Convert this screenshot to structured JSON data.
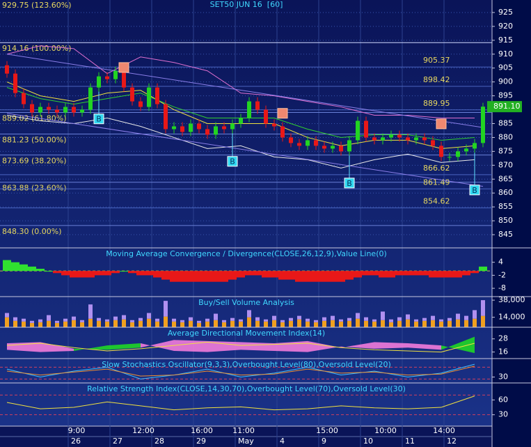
{
  "chart_data": {
    "type": "candlestick",
    "title": "SET50 JUN 16  [60]",
    "time_labels": [
      null,
      null,
      null,
      null,
      null,
      null,
      null,
      null,
      "9:00",
      null,
      null,
      null,
      null,
      null,
      null,
      null,
      "12:00",
      null,
      null,
      null,
      null,
      null,
      null,
      "16:00",
      null,
      null,
      null,
      null,
      "11:00",
      null,
      null,
      null,
      null,
      null,
      null,
      null,
      null,
      null,
      "15:00",
      null,
      null,
      null,
      null,
      null,
      null,
      "10:00",
      null,
      null,
      null,
      null,
      null,
      null,
      "14:00",
      null,
      null,
      null,
      null,
      null
    ],
    "date_labels": [
      null,
      null,
      null,
      null,
      null,
      null,
      null,
      null,
      "26",
      null,
      null,
      null,
      null,
      "27",
      null,
      null,
      null,
      null,
      "28",
      null,
      null,
      null,
      null,
      "29",
      null,
      null,
      null,
      null,
      "May",
      null,
      null,
      null,
      null,
      "4",
      null,
      null,
      null,
      null,
      "9",
      null,
      null,
      null,
      null,
      "10",
      null,
      null,
      null,
      null,
      "11",
      null,
      null,
      null,
      null,
      "12",
      null,
      null,
      null,
      null
    ],
    "open": [
      906,
      903,
      896,
      892,
      889,
      891,
      890,
      889,
      891,
      889,
      890,
      898,
      902,
      901,
      904,
      898,
      893,
      891,
      898,
      892,
      883,
      884,
      882,
      885,
      883,
      881,
      884,
      883,
      885,
      887,
      893,
      890,
      885,
      884,
      880,
      878,
      877,
      879,
      877,
      876,
      877,
      875,
      879,
      886,
      880,
      879,
      880,
      881,
      880,
      879,
      880,
      879,
      877,
      873,
      873,
      875,
      876,
      878
    ],
    "high": [
      907.5,
      904.5,
      897.5,
      893.5,
      892.5,
      892.5,
      891.5,
      892.5,
      892.5,
      891.5,
      899.5,
      903.5,
      903.5,
      905.5,
      905.5,
      899.5,
      894.5,
      899.5,
      899.5,
      893.5,
      885.5,
      885.5,
      886.5,
      886.5,
      884.5,
      885.5,
      885.5,
      886.5,
      888.5,
      894.5,
      894.5,
      891.5,
      886.5,
      885.5,
      881.5,
      879.5,
      880.5,
      880.5,
      878.5,
      878.5,
      878.5,
      880.5,
      887.5,
      887.5,
      881.5,
      881.5,
      882.5,
      882.5,
      881.5,
      881.5,
      881.5,
      880.5,
      878.5,
      874.5,
      876.5,
      877.5,
      879.5,
      892.5
    ],
    "low": [
      901.5,
      894.5,
      890.5,
      887.5,
      887.5,
      888.5,
      887.5,
      887.5,
      887.5,
      887.5,
      888.5,
      896.5,
      899.5,
      899.5,
      896.5,
      891.5,
      889.5,
      889.5,
      890.5,
      881.5,
      881.5,
      880.5,
      880.5,
      881.5,
      879.5,
      879.5,
      881.5,
      881.5,
      883.5,
      885.5,
      888.5,
      883.5,
      882.5,
      878.5,
      876.5,
      875.5,
      875.5,
      875.5,
      874.5,
      874.5,
      873.5,
      873.5,
      877.5,
      878.5,
      877.5,
      877.5,
      878.5,
      878.5,
      877.5,
      877.5,
      877.5,
      875.5,
      871.5,
      871.5,
      871.5,
      873.5,
      874.5,
      876.5
    ],
    "close": [
      903,
      896,
      892,
      889,
      891,
      890,
      889,
      891,
      889,
      890,
      898,
      902,
      901,
      904,
      898,
      893,
      891,
      898,
      892,
      883,
      884,
      882,
      885,
      883,
      881,
      884,
      883,
      885,
      887,
      893,
      890,
      885,
      884,
      880,
      878,
      877,
      879,
      877,
      876,
      877,
      875,
      879,
      886,
      880,
      879,
      880,
      881,
      880,
      879,
      880,
      879,
      877,
      873,
      873,
      875,
      876,
      878,
      891.1
    ],
    "up_color": "#22d422",
    "down_color": "#e81818",
    "ylim": [
      840.5,
      929.5
    ],
    "yticks": [
      845,
      850,
      855,
      860,
      865,
      870,
      875,
      880,
      885,
      890,
      895,
      900,
      905,
      910,
      915,
      920,
      925
    ],
    "grid": true,
    "last_price": {
      "value": 891.1,
      "label": "891.10"
    },
    "fib_levels": [
      {
        "value": 929.75,
        "label": "929.75 (123.60%)"
      },
      {
        "value": 914.16,
        "label": "914.16 (100.00%)"
      },
      {
        "value": 889.02,
        "label": "889.02 (61.80%)"
      },
      {
        "value": 881.23,
        "label": "881.23 (50.00%)"
      },
      {
        "value": 873.69,
        "label": "873.69 (38.20%)"
      },
      {
        "value": 863.88,
        "label": "863.88 (23.60%)"
      },
      {
        "value": 848.3,
        "label": "848.30 (0.00%)"
      }
    ],
    "projection_levels": [
      905.37,
      898.42,
      889.95,
      866.62,
      861.49,
      854.62
    ],
    "overlays": [
      {
        "color": "#e070d0",
        "x": [
          0,
          4,
          8,
          12,
          16,
          20,
          24,
          28,
          32,
          36,
          40,
          44,
          48,
          52,
          56
        ],
        "values": [
          910,
          913,
          912,
          903,
          909,
          907,
          904,
          896,
          895,
          893,
          891,
          888,
          888,
          887,
          887
        ]
      },
      {
        "color": "#e8e8e8",
        "x": [
          0,
          4,
          8,
          12,
          16,
          20,
          24,
          28,
          32,
          36,
          40,
          44,
          48,
          52,
          56
        ],
        "values": [
          888,
          886,
          885,
          887,
          884,
          880,
          876,
          877,
          873,
          872,
          869,
          872,
          874,
          871,
          872
        ]
      },
      {
        "color": "#f0e040",
        "x": [
          0,
          4,
          8,
          12,
          16,
          20,
          24,
          28,
          32,
          36,
          40,
          44,
          48,
          52,
          56
        ],
        "values": [
          900,
          895,
          893,
          896,
          897,
          890,
          885,
          885,
          885,
          880,
          877,
          879,
          879,
          876,
          877
        ]
      },
      {
        "color": "#30d030",
        "x": [
          0,
          4,
          8,
          12,
          16,
          20,
          24,
          28,
          32,
          36,
          40,
          44,
          48,
          52,
          56
        ],
        "values": [
          898,
          894,
          892,
          894,
          896,
          891,
          887,
          887,
          887,
          883,
          880,
          881,
          881,
          879,
          880
        ]
      },
      {
        "color": "#8a7ee8",
        "x": [
          0,
          57
        ],
        "values": [
          910,
          883.6
        ]
      },
      {
        "color": "#8a7ee8",
        "x": [
          0,
          57
        ],
        "values": [
          888.7,
          862.4
        ]
      }
    ],
    "buy_signals": [
      {
        "label": "B",
        "index": 11,
        "value": 886.7
      },
      {
        "label": "B",
        "index": 27,
        "value": 871.4
      },
      {
        "label": "B",
        "index": 41,
        "value": 863.6
      },
      {
        "label": "B",
        "index": 56,
        "value": 861.1
      }
    ],
    "sell_signals": [
      {
        "index": 14,
        "value": 905.2
      },
      {
        "index": 33,
        "value": 888.7
      },
      {
        "index": 52,
        "value": 884.9
      }
    ],
    "panels": [
      {
        "type": "histogram",
        "title": "Moving Average Convergence / Divergence(CLOSE,26,12,9),Value Line(0)",
        "ylim": [
          -11.5,
          10.3
        ],
        "yticks": [
          4,
          -2,
          -8
        ],
        "colors": [
          "#30e030",
          "#e81818"
        ],
        "values": [
          5,
          4,
          3,
          2,
          1,
          0,
          -1,
          -2,
          -3,
          -3,
          -3,
          -2,
          -2,
          -1,
          0,
          -1,
          -2,
          -2,
          -3,
          -4,
          -5,
          -5,
          -5,
          -5,
          -5,
          -5,
          -5,
          -4,
          -3,
          -2,
          -2,
          -3,
          -3,
          -4,
          -4,
          -5,
          -5,
          -5,
          -5,
          -5,
          -5,
          -4,
          -3,
          -2,
          -2,
          -3,
          -3,
          -2,
          -2,
          -2,
          -2,
          -3,
          -3,
          -3,
          -3,
          -2,
          -1,
          2
        ]
      },
      {
        "type": "stacked",
        "title": "Buy/Sell Volume Analysis",
        "ylim": [
          0,
          42000
        ],
        "yticks": [
          {
            "value": 38000,
            "label": "38,000"
          },
          {
            "value": 14000,
            "label": "14,000"
          }
        ],
        "series": [
          {
            "color": "#f0a020",
            "values": [
              14000,
              9000,
              8000,
              6000,
              7000,
              9000,
              6000,
              8000,
              10000,
              7000,
              12000,
              9000,
              8000,
              10000,
              11000,
              7000,
              9000,
              12000,
              8000,
              15000,
              8000,
              7000,
              9000,
              6000,
              8000,
              10000,
              7000,
              9000,
              8000,
              14000,
              9000,
              8000,
              10000,
              7000,
              9000,
              11000,
              8000,
              7000,
              9000,
              10000,
              8000,
              9000,
              12000,
              9000,
              8000,
              10000,
              7000,
              9000,
              11000,
              8000,
              9000,
              10000,
              8000,
              9000,
              11000,
              10000,
              12000,
              16000
            ]
          },
          {
            "color": "#b090f0",
            "values": [
              6000,
              5000,
              4000,
              3000,
              4000,
              8000,
              3000,
              4000,
              5000,
              3000,
              20000,
              4000,
              3000,
              5000,
              6000,
              3000,
              4000,
              8000,
              4000,
              22000,
              4000,
              3000,
              5000,
              3000,
              4000,
              9000,
              3000,
              4000,
              3000,
              10000,
              5000,
              3000,
              6000,
              3000,
              4000,
              5000,
              4000,
              3000,
              5000,
              6000,
              3000,
              4000,
              8000,
              5000,
              3000,
              12000,
              4000,
              5000,
              7000,
              3000,
              4000,
              6000,
              3000,
              4000,
              8000,
              6000,
              12000,
              22000
            ]
          }
        ]
      },
      {
        "type": "dmi",
        "title": "Average Directional Movement Index(14)",
        "ylim": [
          10,
          38
        ],
        "yticks": [
          28,
          16
        ],
        "x": [
          0,
          4,
          8,
          12,
          16,
          20,
          24,
          28,
          32,
          36,
          40,
          44,
          48,
          52,
          56
        ],
        "series": [
          {
            "color": "#20e020",
            "values": [
              18,
              16,
              17,
              22,
              24,
              17,
              16,
              18,
              17,
              16,
              21,
              19,
              20,
              18,
              30
            ]
          },
          {
            "color": "#ff80e0",
            "values": [
              24,
              25,
              19,
              18,
              20,
              27,
              26,
              25,
              24,
              26,
              20,
              25,
              24,
              22,
              15
            ]
          },
          {
            "color": "#f0e040",
            "values": [
              22,
              24,
              20,
              17,
              19,
              22,
              25,
              22,
              23,
              24,
              20,
              18,
              17,
              16,
              24
            ]
          }
        ]
      },
      {
        "type": "lines",
        "title": "Slow Stochastics Oscillator(9,3,3),Overbought Level(80),Oversold Level(20)",
        "ylim": [
          0,
          120
        ],
        "yticks": [
          30
        ],
        "levels": [
          80,
          20
        ],
        "x": [
          0,
          4,
          8,
          12,
          16,
          20,
          24,
          28,
          32,
          36,
          40,
          44,
          48,
          52,
          56
        ],
        "series": [
          {
            "color": "#40c0ff",
            "values": [
              70,
              30,
              60,
              80,
              20,
              40,
              70,
              30,
              50,
              80,
              40,
              60,
              30,
              50,
              95
            ]
          },
          {
            "color": "#f09030",
            "values": [
              60,
              40,
              55,
              70,
              35,
              40,
              60,
              40,
              45,
              70,
              50,
              55,
              40,
              45,
              85
            ]
          }
        ]
      },
      {
        "type": "lines",
        "title": "Relative Strength Index(CLOSE,14,30,70),Overbought Level(70),Oversold Level(30)",
        "ylim": [
          7,
          93
        ],
        "yticks": [
          60,
          30
        ],
        "levels": [
          70,
          30
        ],
        "x": [
          0,
          4,
          8,
          12,
          16,
          20,
          24,
          28,
          32,
          36,
          40,
          44,
          48,
          52,
          56
        ],
        "series": [
          {
            "color": "#f0e040",
            "values": [
              55,
              42,
              45,
              56,
              48,
              40,
              44,
              46,
              40,
              42,
              48,
              44,
              42,
              45,
              68
            ]
          }
        ]
      }
    ]
  }
}
